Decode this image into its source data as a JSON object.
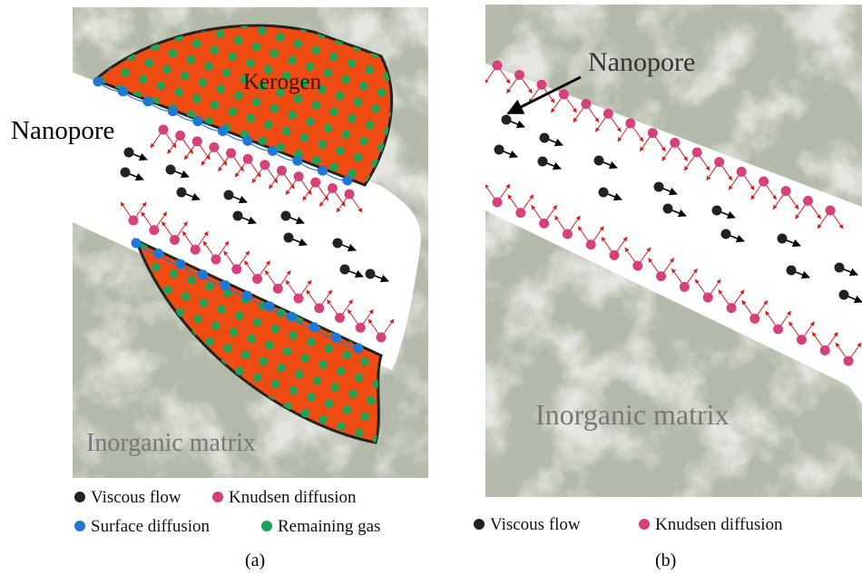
{
  "panel_a": {
    "kerogen": "Kerogen",
    "nanopore": "Nanopore",
    "matrix": "Inorganic matrix",
    "legend": [
      "Viscous flow",
      "Knudsen diffusion",
      "Surface diffusion",
      "Remaining gas"
    ],
    "caption": "(a)"
  },
  "panel_b": {
    "nanopore": "Nanopore",
    "matrix": "Inorganic matrix",
    "legend": [
      "Viscous flow",
      "Knudsen diffusion"
    ],
    "caption": "(b)"
  }
}
